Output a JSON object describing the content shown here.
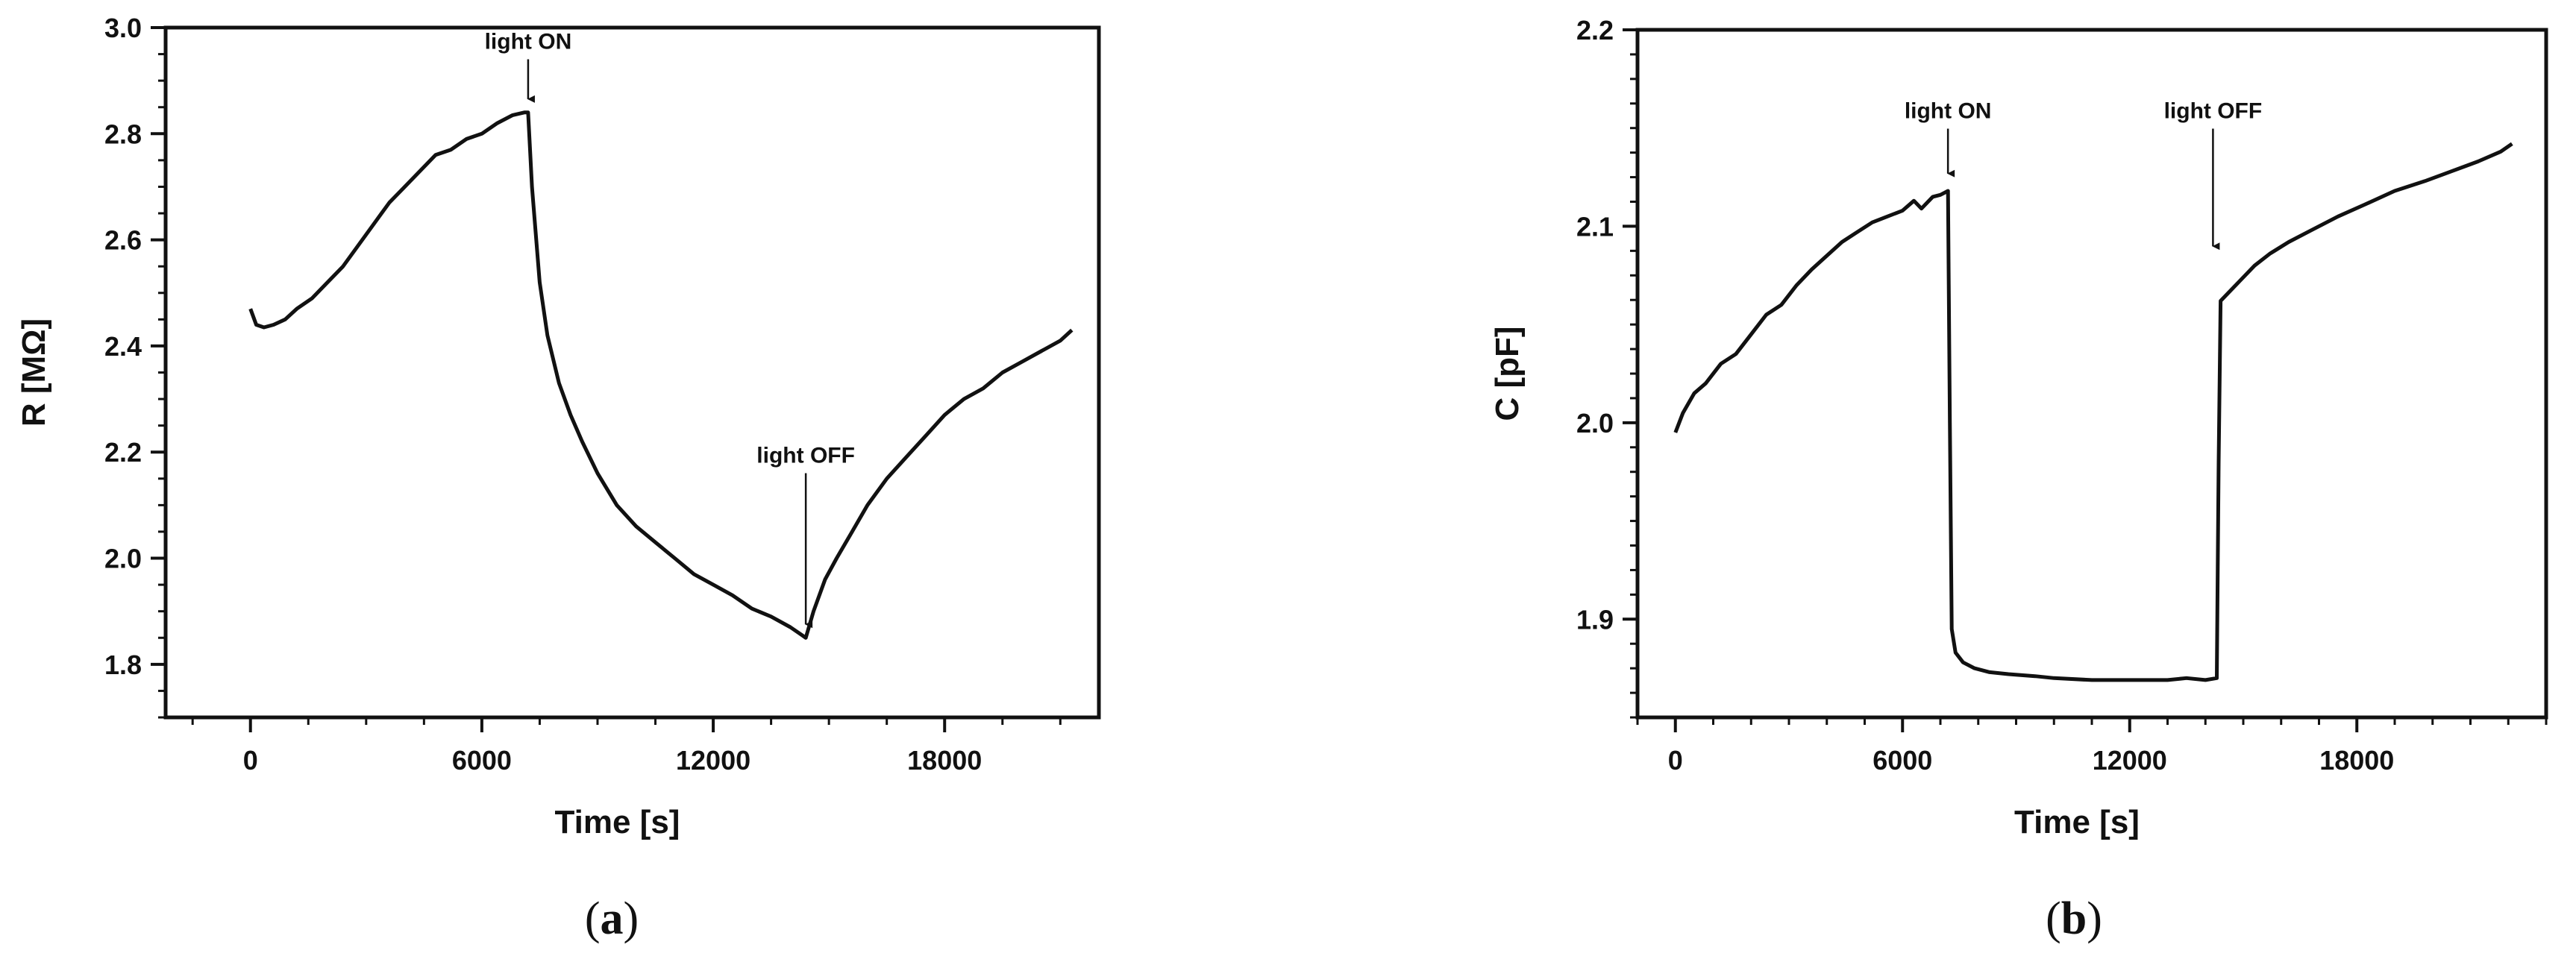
{
  "chart_data": [
    {
      "type": "line",
      "panel_label": "a",
      "xlabel": "Time  [s]",
      "ylabel": "R [MΩ]",
      "xlim": [
        -2200,
        22000
      ],
      "ylim": [
        1.7,
        3.0
      ],
      "xticks": [
        0,
        6000,
        12000,
        18000
      ],
      "xtick_labels": [
        "0",
        "6000",
        "12000",
        "18000"
      ],
      "yticks": [
        1.8,
        2.0,
        2.2,
        2.4,
        2.6,
        2.8,
        3.0
      ],
      "ytick_labels": [
        "1.8",
        "2.0",
        "2.2",
        "2.4",
        "2.6",
        "2.8",
        "3.0"
      ],
      "grid": false,
      "line_color": "#111111",
      "annotations": [
        {
          "text": "light ON",
          "x": 7200,
          "y": 2.84,
          "text_y": 2.96
        },
        {
          "text": "light OFF",
          "x": 14400,
          "y": 1.85,
          "text_y": 2.18
        }
      ],
      "series": [
        {
          "x": [
            0,
            150,
            350,
            600,
            900,
            1200,
            1600,
            2000,
            2400,
            2800,
            3200,
            3600,
            4000,
            4400,
            4800,
            5200,
            5600,
            6000,
            6400,
            6800,
            7100,
            7200,
            7300,
            7500,
            7700,
            8000,
            8300,
            8600,
            9000,
            9500,
            10000,
            10500,
            11000,
            11500,
            12000,
            12500,
            13000,
            13500,
            14000,
            14300,
            14400,
            14600,
            14900,
            15200,
            15600,
            16000,
            16500,
            17000,
            17500,
            18000,
            18500,
            19000,
            19500,
            20000,
            20500,
            21000,
            21300
          ],
          "y": [
            2.47,
            2.44,
            2.435,
            2.44,
            2.45,
            2.47,
            2.49,
            2.52,
            2.55,
            2.59,
            2.63,
            2.67,
            2.7,
            2.73,
            2.76,
            2.77,
            2.79,
            2.8,
            2.82,
            2.835,
            2.84,
            2.84,
            2.7,
            2.52,
            2.42,
            2.33,
            2.27,
            2.22,
            2.16,
            2.1,
            2.06,
            2.03,
            2.0,
            1.97,
            1.95,
            1.93,
            1.905,
            1.89,
            1.87,
            1.855,
            1.85,
            1.9,
            1.96,
            2.0,
            2.05,
            2.1,
            2.15,
            2.19,
            2.23,
            2.27,
            2.3,
            2.32,
            2.35,
            2.37,
            2.39,
            2.41,
            2.43
          ]
        }
      ]
    },
    {
      "type": "line",
      "panel_label": "b",
      "xlabel": "Time  [s]",
      "ylabel": "C [pF]",
      "xlim": [
        -1000,
        23000
      ],
      "ylim": [
        1.85,
        2.2
      ],
      "xticks": [
        0,
        6000,
        12000,
        18000
      ],
      "xtick_labels": [
        "0",
        "6000",
        "12000",
        "18000"
      ],
      "yticks": [
        1.9,
        2.0,
        2.1,
        2.2
      ],
      "ytick_labels": [
        "1.9",
        "2.0",
        "2.1",
        "2.2"
      ],
      "grid": false,
      "line_color": "#111111",
      "annotations": [
        {
          "text": "light ON",
          "x": 7200,
          "y": 2.12,
          "text_y": 2.155
        },
        {
          "text": "light OFF",
          "x": 14200,
          "y": 2.083,
          "text_y": 2.155
        }
      ],
      "series": [
        {
          "x": [
            0,
            200,
            500,
            800,
            1200,
            1600,
            2000,
            2400,
            2800,
            3200,
            3600,
            4000,
            4400,
            4800,
            5200,
            5600,
            6000,
            6300,
            6500,
            6800,
            7000,
            7200,
            7250,
            7300,
            7400,
            7600,
            7900,
            8300,
            8800,
            9500,
            10000,
            11000,
            12000,
            13000,
            13500,
            14000,
            14300,
            14350,
            14400,
            14600,
            14900,
            15300,
            15700,
            16200,
            16800,
            17500,
            18200,
            19000,
            19800,
            20500,
            21200,
            21800,
            22100
          ],
          "y": [
            1.995,
            2.005,
            2.015,
            2.02,
            2.03,
            2.035,
            2.045,
            2.055,
            2.06,
            2.07,
            2.078,
            2.085,
            2.092,
            2.097,
            2.102,
            2.105,
            2.108,
            2.113,
            2.109,
            2.115,
            2.116,
            2.118,
            2.0,
            1.895,
            1.883,
            1.878,
            1.875,
            1.873,
            1.872,
            1.871,
            1.87,
            1.869,
            1.869,
            1.869,
            1.87,
            1.869,
            1.87,
            1.98,
            2.062,
            2.066,
            2.072,
            2.08,
            2.086,
            2.092,
            2.098,
            2.105,
            2.111,
            2.118,
            2.123,
            2.128,
            2.133,
            2.138,
            2.142
          ]
        }
      ]
    }
  ]
}
